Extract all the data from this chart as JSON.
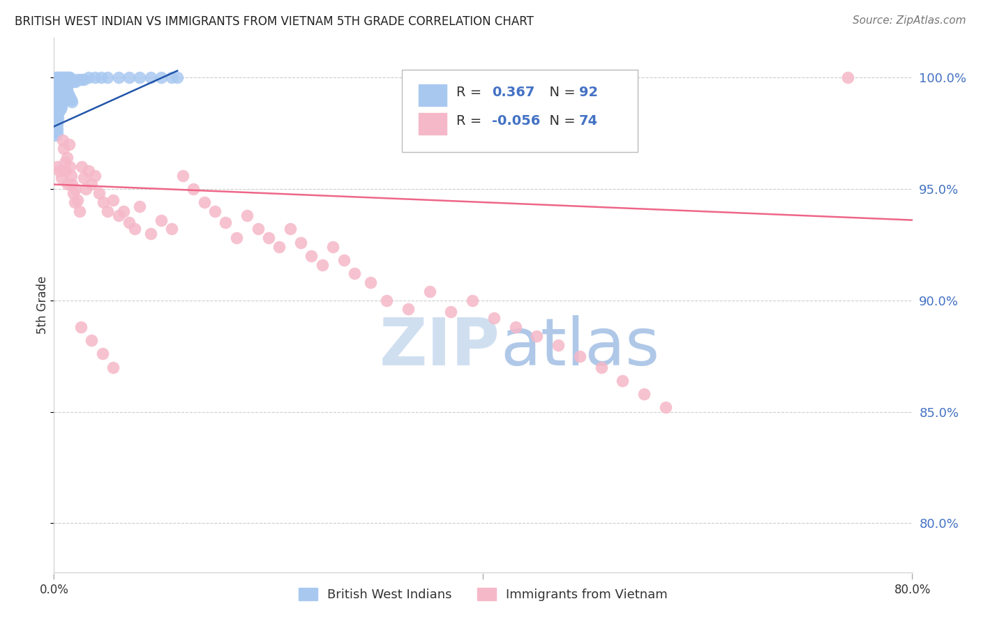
{
  "title": "BRITISH WEST INDIAN VS IMMIGRANTS FROM VIETNAM 5TH GRADE CORRELATION CHART",
  "source": "Source: ZipAtlas.com",
  "ylabel": "5th Grade",
  "ytick_labels": [
    "80.0%",
    "85.0%",
    "90.0%",
    "95.0%",
    "100.0%"
  ],
  "ytick_values": [
    0.8,
    0.85,
    0.9,
    0.95,
    1.0
  ],
  "xlim": [
    0.0,
    0.8
  ],
  "ylim": [
    0.778,
    1.018
  ],
  "blue_color": "#a8c8f0",
  "pink_color": "#f5b8c8",
  "blue_line_color": "#2255aa",
  "pink_line_color": "#ee6688",
  "watermark_color": "#d0dff0",
  "blue_scatter_x": [
    0.002,
    0.003,
    0.004,
    0.005,
    0.006,
    0.007,
    0.008,
    0.009,
    0.01,
    0.011,
    0.012,
    0.013,
    0.014,
    0.015,
    0.003,
    0.004,
    0.005,
    0.006,
    0.007,
    0.008,
    0.009,
    0.01,
    0.011,
    0.012,
    0.002,
    0.003,
    0.004,
    0.005,
    0.006,
    0.007,
    0.008,
    0.009,
    0.01,
    0.002,
    0.003,
    0.004,
    0.005,
    0.006,
    0.007,
    0.008,
    0.002,
    0.003,
    0.004,
    0.005,
    0.006,
    0.007,
    0.002,
    0.003,
    0.004,
    0.005,
    0.006,
    0.002,
    0.003,
    0.004,
    0.005,
    0.002,
    0.003,
    0.004,
    0.002,
    0.003,
    0.004,
    0.002,
    0.003,
    0.002,
    0.003,
    0.002,
    0.003,
    0.002,
    0.003,
    0.002,
    0.018,
    0.02,
    0.022,
    0.025,
    0.028,
    0.032,
    0.038,
    0.044,
    0.05,
    0.06,
    0.07,
    0.08,
    0.09,
    0.1,
    0.11,
    0.115,
    0.012,
    0.013,
    0.014,
    0.015,
    0.016,
    0.017
  ],
  "blue_scatter_y": [
    1.0,
    1.0,
    1.0,
    1.0,
    1.0,
    1.0,
    1.0,
    1.0,
    1.0,
    1.0,
    1.0,
    1.0,
    1.0,
    1.0,
    0.998,
    0.998,
    0.998,
    0.998,
    0.998,
    0.997,
    0.997,
    0.997,
    0.996,
    0.996,
    0.996,
    0.996,
    0.995,
    0.995,
    0.994,
    0.994,
    0.993,
    0.993,
    0.992,
    0.994,
    0.993,
    0.992,
    0.991,
    0.99,
    0.99,
    0.989,
    0.992,
    0.991,
    0.99,
    0.989,
    0.988,
    0.987,
    0.99,
    0.989,
    0.988,
    0.987,
    0.986,
    0.988,
    0.987,
    0.986,
    0.985,
    0.986,
    0.985,
    0.984,
    0.984,
    0.983,
    0.982,
    0.982,
    0.981,
    0.98,
    0.979,
    0.978,
    0.977,
    0.976,
    0.975,
    0.974,
    0.998,
    0.998,
    0.999,
    0.999,
    0.999,
    1.0,
    1.0,
    1.0,
    1.0,
    1.0,
    1.0,
    1.0,
    1.0,
    1.0,
    1.0,
    1.0,
    0.994,
    0.993,
    0.992,
    0.991,
    0.99,
    0.989
  ],
  "pink_scatter_x": [
    0.003,
    0.005,
    0.007,
    0.008,
    0.009,
    0.01,
    0.011,
    0.012,
    0.013,
    0.014,
    0.015,
    0.016,
    0.017,
    0.018,
    0.019,
    0.02,
    0.022,
    0.024,
    0.026,
    0.028,
    0.03,
    0.032,
    0.035,
    0.038,
    0.042,
    0.046,
    0.05,
    0.055,
    0.06,
    0.065,
    0.07,
    0.075,
    0.08,
    0.09,
    0.1,
    0.11,
    0.12,
    0.13,
    0.14,
    0.15,
    0.16,
    0.17,
    0.18,
    0.19,
    0.2,
    0.21,
    0.22,
    0.23,
    0.24,
    0.25,
    0.26,
    0.27,
    0.28,
    0.295,
    0.31,
    0.33,
    0.35,
    0.37,
    0.39,
    0.41,
    0.43,
    0.45,
    0.47,
    0.49,
    0.51,
    0.53,
    0.55,
    0.57,
    0.025,
    0.035,
    0.045,
    0.055,
    0.74
  ],
  "pink_scatter_y": [
    0.96,
    0.958,
    0.955,
    0.972,
    0.968,
    0.962,
    0.958,
    0.964,
    0.952,
    0.97,
    0.96,
    0.956,
    0.952,
    0.948,
    0.944,
    0.95,
    0.945,
    0.94,
    0.96,
    0.955,
    0.95,
    0.958,
    0.952,
    0.956,
    0.948,
    0.944,
    0.94,
    0.945,
    0.938,
    0.94,
    0.935,
    0.932,
    0.942,
    0.93,
    0.936,
    0.932,
    0.956,
    0.95,
    0.944,
    0.94,
    0.935,
    0.928,
    0.938,
    0.932,
    0.928,
    0.924,
    0.932,
    0.926,
    0.92,
    0.916,
    0.924,
    0.918,
    0.912,
    0.908,
    0.9,
    0.896,
    0.904,
    0.895,
    0.9,
    0.892,
    0.888,
    0.884,
    0.88,
    0.875,
    0.87,
    0.864,
    0.858,
    0.852,
    0.888,
    0.882,
    0.876,
    0.87,
    1.0
  ],
  "blue_line_x": [
    0.0,
    0.115
  ],
  "blue_line_y": [
    0.978,
    1.003
  ],
  "pink_line_x": [
    0.0,
    0.8
  ],
  "pink_line_y": [
    0.952,
    0.936
  ]
}
